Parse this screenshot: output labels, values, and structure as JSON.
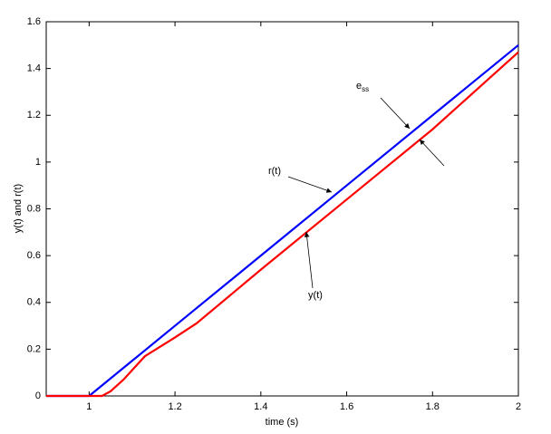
{
  "chart_data": {
    "type": "line",
    "xlabel": "time (s)",
    "ylabel": "y(t) and r(t)",
    "x": [
      0.9,
      1,
      1.03,
      1.05,
      1.08,
      1.1,
      1.13,
      1.2,
      1.25,
      1.4,
      1.6,
      1.8,
      2
    ],
    "series": [
      {
        "name": "r(t)",
        "color": "#0000ff",
        "values": [
          0,
          0,
          0.045,
          0.075,
          0.12,
          0.15,
          0.195,
          0.3,
          0.375,
          0.6,
          0.9,
          1.2,
          1.5
        ]
      },
      {
        "name": "y(t)",
        "color": "#ff0000",
        "values": [
          0,
          0,
          0,
          0.02,
          0.07,
          0.11,
          0.17,
          0.25,
          0.31,
          0.54,
          0.84,
          1.14,
          1.47
        ]
      }
    ],
    "xlim": [
      0.9,
      2
    ],
    "xticks": [
      1,
      1.2,
      1.4,
      1.6,
      1.8,
      2
    ],
    "ylim": [
      0,
      1.6
    ],
    "yticks": [
      0,
      0.2,
      0.4,
      0.6,
      0.8,
      1,
      1.2,
      1.4,
      1.6
    ],
    "grid": false,
    "annotations": [
      {
        "text": "r(t)"
      },
      {
        "text": "y(t)"
      },
      {
        "text": "e",
        "subscript": "ss"
      }
    ]
  }
}
